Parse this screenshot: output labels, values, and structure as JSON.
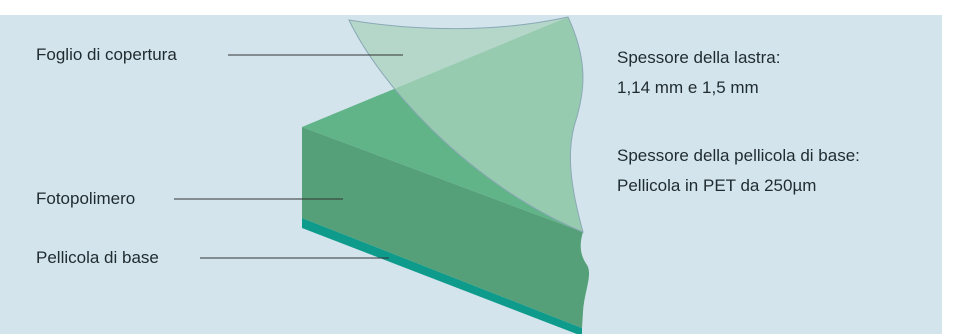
{
  "labels": {
    "cover_sheet": "Foglio di copertura",
    "photopolymer": "Fotopolimero",
    "base_film": "Pellicola di base"
  },
  "specs": {
    "plate_thickness_title": "Spessore della lastra:",
    "plate_thickness_value": "1,14 mm e 1,5 mm",
    "base_film_thickness_title": "Spessore della pellicola di base:",
    "base_film_thickness_value": "Pellicola in PET da 250µm"
  },
  "colors": {
    "background": "#d3e4ec",
    "polymer_side": "#55a078",
    "polymer_top": "#60b487",
    "cover_sheet": "#8fc6a7",
    "base_film": "#0f9b8c",
    "leader_line": "#333333"
  }
}
